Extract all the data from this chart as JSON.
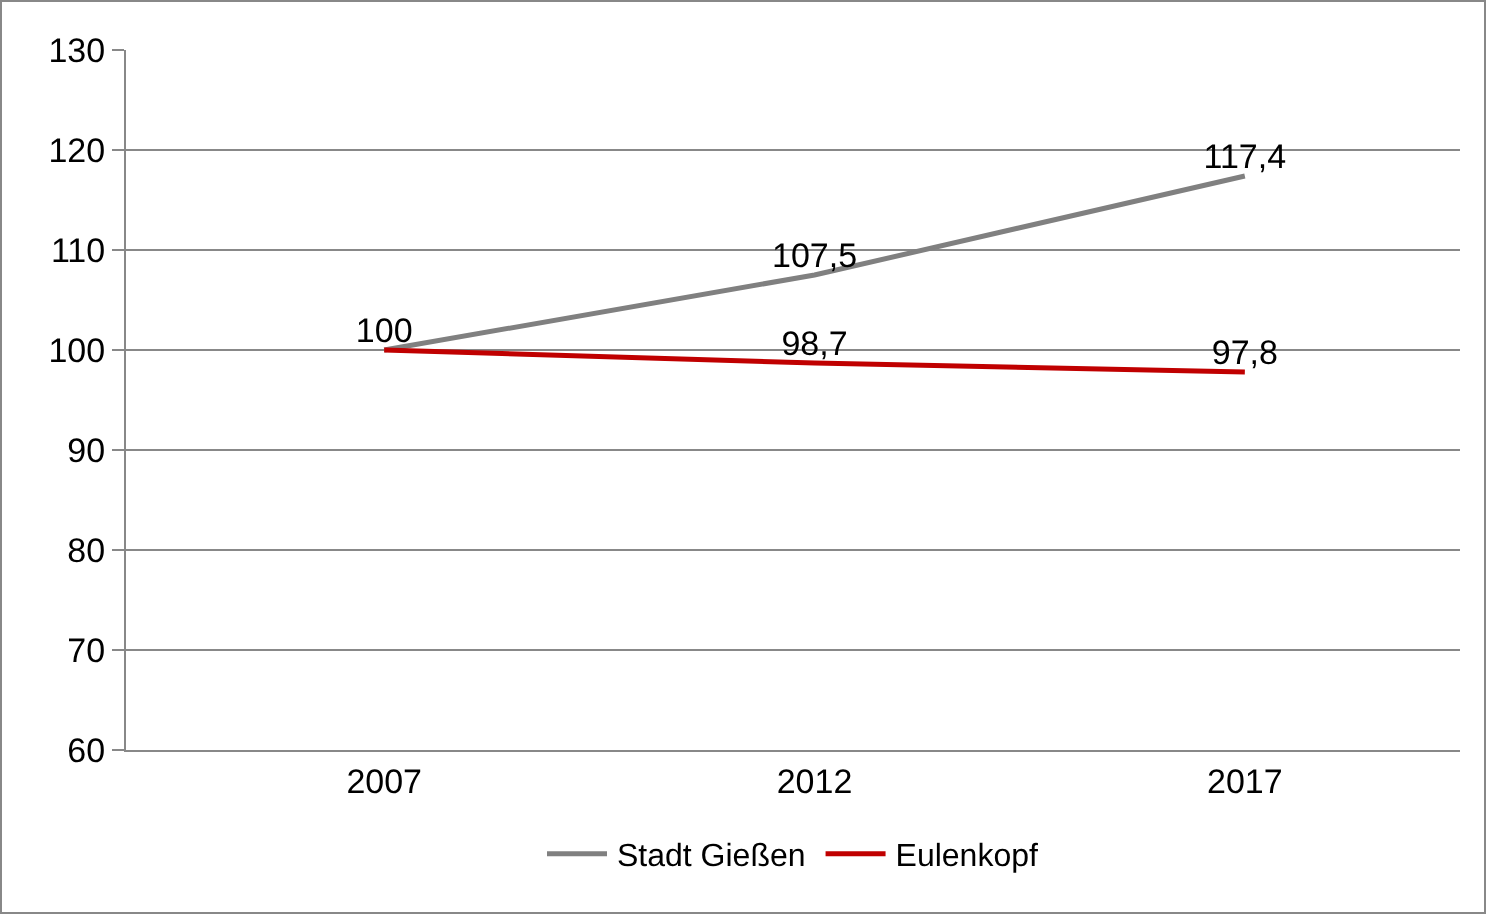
{
  "chart_data": {
    "type": "line",
    "categories": [
      "2007",
      "2012",
      "2017"
    ],
    "series": [
      {
        "name": "Stadt Gießen",
        "color": "#808080",
        "values": [
          100,
          107.5,
          117.4
        ],
        "value_labels": [
          "100",
          "107,5",
          "117,4"
        ]
      },
      {
        "name": "Eulenkopf",
        "color": "#c00000",
        "values": [
          100,
          98.7,
          97.8
        ],
        "value_labels": [
          null,
          "98,7",
          "97,8"
        ]
      }
    ],
    "ylim": [
      60,
      130
    ],
    "yticks": [
      60,
      70,
      80,
      90,
      100,
      110,
      120,
      130
    ],
    "grid": "y",
    "legend": "bottom",
    "marker": "none",
    "line_style": "solid"
  }
}
